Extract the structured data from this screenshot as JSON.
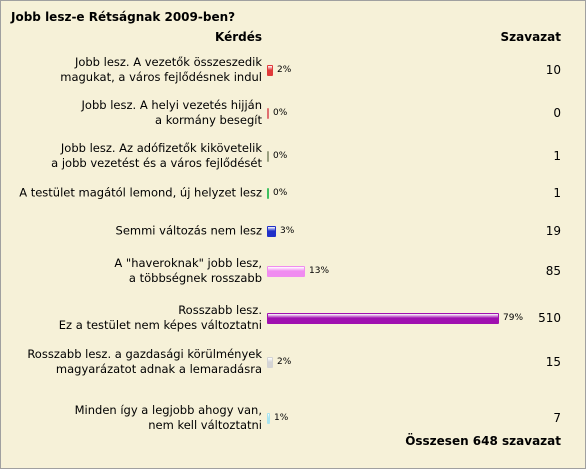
{
  "poll": {
    "title": "Jobb lesz-e Rétságnak 2009-ben?",
    "header_question": "Kérdés",
    "header_votes": "Szavazat",
    "total": "Összesen 648 szavazat",
    "options": [
      {
        "line1": "Jobb lesz. A vezetők összeszedik",
        "line2": "magukat, a város fejlődésnek indul",
        "percent_label": "2%",
        "percent": 2,
        "votes": "10",
        "color": "#e03a3a"
      },
      {
        "line1": "Jobb lesz. A helyi vezetés hijján",
        "line2": "a kormány besegít",
        "percent_label": "0%",
        "percent": 0,
        "votes": "0",
        "color": "#e07070"
      },
      {
        "line1": "Jobb lesz. Az adófizetők kikövetelik",
        "line2": "a jobb vezetést és a város fejlődését",
        "percent_label": "0%",
        "percent": 0,
        "votes": "1",
        "color": "#9aa080"
      },
      {
        "line1": "A testület magától lemond, új helyzet lesz",
        "line2": "",
        "percent_label": "0%",
        "percent": 0,
        "votes": "1",
        "color": "#3fc060"
      },
      {
        "line1": "Semmi változás nem lesz",
        "line2": "",
        "percent_label": "3%",
        "percent": 3,
        "votes": "19",
        "color": "#2030c8"
      },
      {
        "line1": "A \"haveroknak\" jobb lesz,",
        "line2": "a többségnek rosszabb",
        "percent_label": "13%",
        "percent": 13,
        "votes": "85",
        "color": "#f08cf0"
      },
      {
        "line1": "Rosszabb lesz.",
        "line2": "Ez a testület nem képes változtatni",
        "percent_label": "79%",
        "percent": 79,
        "votes": "510",
        "color": "#a010b0"
      },
      {
        "line1": "Rosszabb lesz. a gazdasági körülmények",
        "line2": "magyarázatot adnak a lemaradásra",
        "percent_label": "2%",
        "percent": 2,
        "votes": "15",
        "color": "#d4d4d4"
      },
      {
        "line1": "Minden így a legjobb ahogy van,",
        "line2": "nem kell változtatni",
        "percent_label": "1%",
        "percent": 1,
        "votes": "7",
        "color": "#a8e4f0"
      }
    ]
  }
}
